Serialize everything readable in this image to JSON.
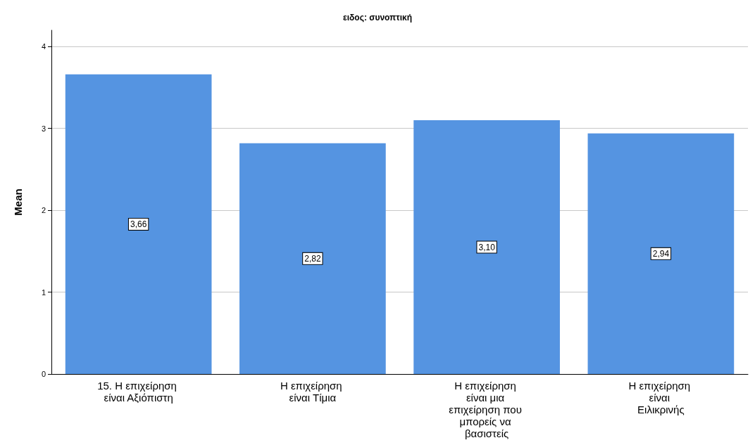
{
  "chart_data": {
    "type": "bar",
    "title": "ειδος: συνοπτική",
    "ylabel": "Mean",
    "categories": [
      "15. Η επιχείρηση είναι Αξιόπιστη",
      "Η επιχείρηση είναι Τίμια",
      "Η επιχείρηση είναι μια επιχείρηση που μπορείς να βασιστείς",
      "Η επιχείρηση είναι Ειλικρινής"
    ],
    "values": [
      3.66,
      2.82,
      3.1,
      2.94
    ],
    "value_labels": [
      "3,66",
      "2,82",
      "3,10",
      "2,94"
    ],
    "color": "#5594e1",
    "ylim": [
      0,
      4.2
    ],
    "yticks": [
      0,
      1,
      2,
      3,
      4
    ],
    "grid": "y"
  }
}
